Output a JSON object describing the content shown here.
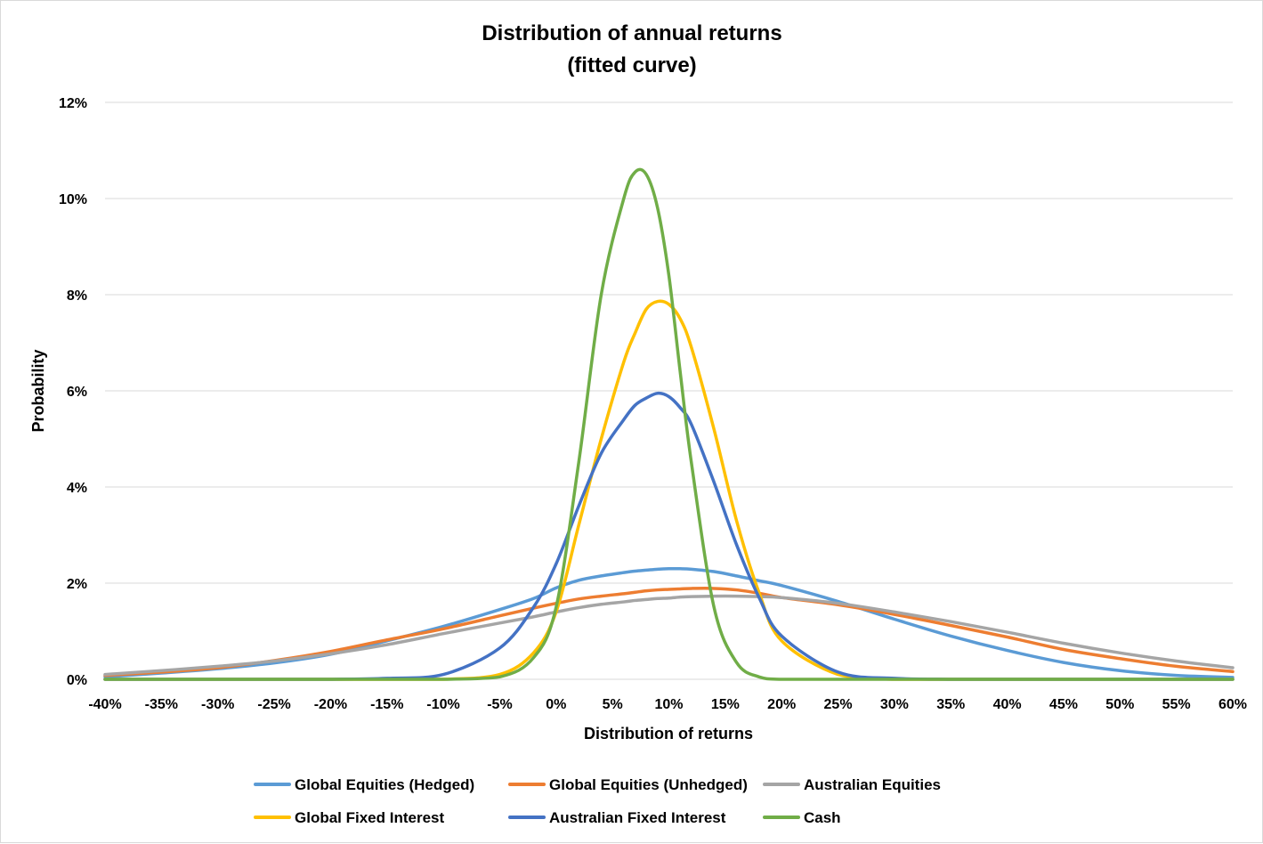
{
  "chart_data": {
    "type": "line",
    "title": [
      "Distribution of annual returns",
      "(fitted curve)"
    ],
    "xlabel": "Distribution of returns",
    "ylabel": "Probability",
    "x_unit": "%",
    "xlim": [
      -40,
      60
    ],
    "ylim": [
      0,
      12
    ],
    "x_ticks": [
      "-40%",
      "-35%",
      "-30%",
      "-25%",
      "-20%",
      "-15%",
      "-10%",
      "-5%",
      "0%",
      "5%",
      "10%",
      "15%",
      "20%",
      "25%",
      "30%",
      "35%",
      "40%",
      "45%",
      "50%",
      "55%",
      "60%"
    ],
    "y_ticks": [
      "0%",
      "2%",
      "4%",
      "6%",
      "8%",
      "10%",
      "12%"
    ],
    "grid": "horizontal",
    "legend_position": "bottom",
    "x": [
      -40,
      -35,
      -30,
      -25,
      -20,
      -15,
      -10,
      -5,
      -2,
      0,
      2,
      4,
      6,
      7,
      8,
      9,
      10,
      11,
      12,
      14,
      16,
      18,
      20,
      25,
      30,
      35,
      40,
      45,
      50,
      55,
      60
    ],
    "series": [
      {
        "name": "Global Equities (Hedged)",
        "color": "#5B9BD5",
        "values": [
          0.05,
          0.13,
          0.22,
          0.34,
          0.52,
          0.8,
          1.1,
          1.45,
          1.68,
          1.9,
          2.06,
          2.15,
          2.22,
          2.25,
          2.27,
          2.29,
          2.3,
          2.3,
          2.29,
          2.24,
          2.15,
          2.05,
          1.95,
          1.62,
          1.25,
          0.9,
          0.6,
          0.35,
          0.18,
          0.08,
          0.04
        ]
      },
      {
        "name": "Global Equities (Unhedged)",
        "color": "#ED7D31",
        "values": [
          0.08,
          0.15,
          0.24,
          0.39,
          0.58,
          0.82,
          1.05,
          1.32,
          1.48,
          1.58,
          1.67,
          1.73,
          1.78,
          1.81,
          1.84,
          1.86,
          1.87,
          1.88,
          1.89,
          1.89,
          1.86,
          1.79,
          1.7,
          1.55,
          1.35,
          1.12,
          0.88,
          0.62,
          0.43,
          0.27,
          0.16
        ]
      },
      {
        "name": "Australian Equities",
        "color": "#A5A5A5",
        "values": [
          0.1,
          0.18,
          0.27,
          0.38,
          0.53,
          0.72,
          0.95,
          1.17,
          1.3,
          1.4,
          1.49,
          1.56,
          1.61,
          1.64,
          1.66,
          1.68,
          1.69,
          1.71,
          1.72,
          1.73,
          1.73,
          1.72,
          1.7,
          1.58,
          1.4,
          1.2,
          0.98,
          0.75,
          0.55,
          0.38,
          0.24
        ]
      },
      {
        "name": "Global Fixed Interest",
        "color": "#FFC000",
        "values": [
          0,
          0,
          0,
          0,
          0,
          0,
          0,
          0.1,
          0.55,
          1.4,
          3.2,
          5.0,
          6.6,
          7.2,
          7.7,
          7.86,
          7.8,
          7.5,
          6.9,
          5.2,
          3.3,
          1.8,
          0.8,
          0.1,
          0,
          0,
          0,
          0,
          0,
          0,
          0
        ]
      },
      {
        "name": "Australian Fixed Interest",
        "color": "#4472C4",
        "values": [
          0,
          0,
          0,
          0,
          0,
          0.02,
          0.1,
          0.65,
          1.5,
          2.4,
          3.6,
          4.7,
          5.4,
          5.7,
          5.85,
          5.95,
          5.88,
          5.65,
          5.3,
          4.1,
          2.8,
          1.7,
          0.9,
          0.15,
          0.02,
          0,
          0,
          0,
          0,
          0,
          0
        ]
      },
      {
        "name": "Cash",
        "color": "#70AD47",
        "values": [
          0,
          0,
          0,
          0,
          0,
          0,
          0,
          0.05,
          0.45,
          1.5,
          4.5,
          8.0,
          10.0,
          10.55,
          10.5,
          9.8,
          8.4,
          6.4,
          4.5,
          1.5,
          0.35,
          0.05,
          0,
          0,
          0,
          0,
          0,
          0,
          0,
          0,
          0
        ]
      }
    ]
  }
}
